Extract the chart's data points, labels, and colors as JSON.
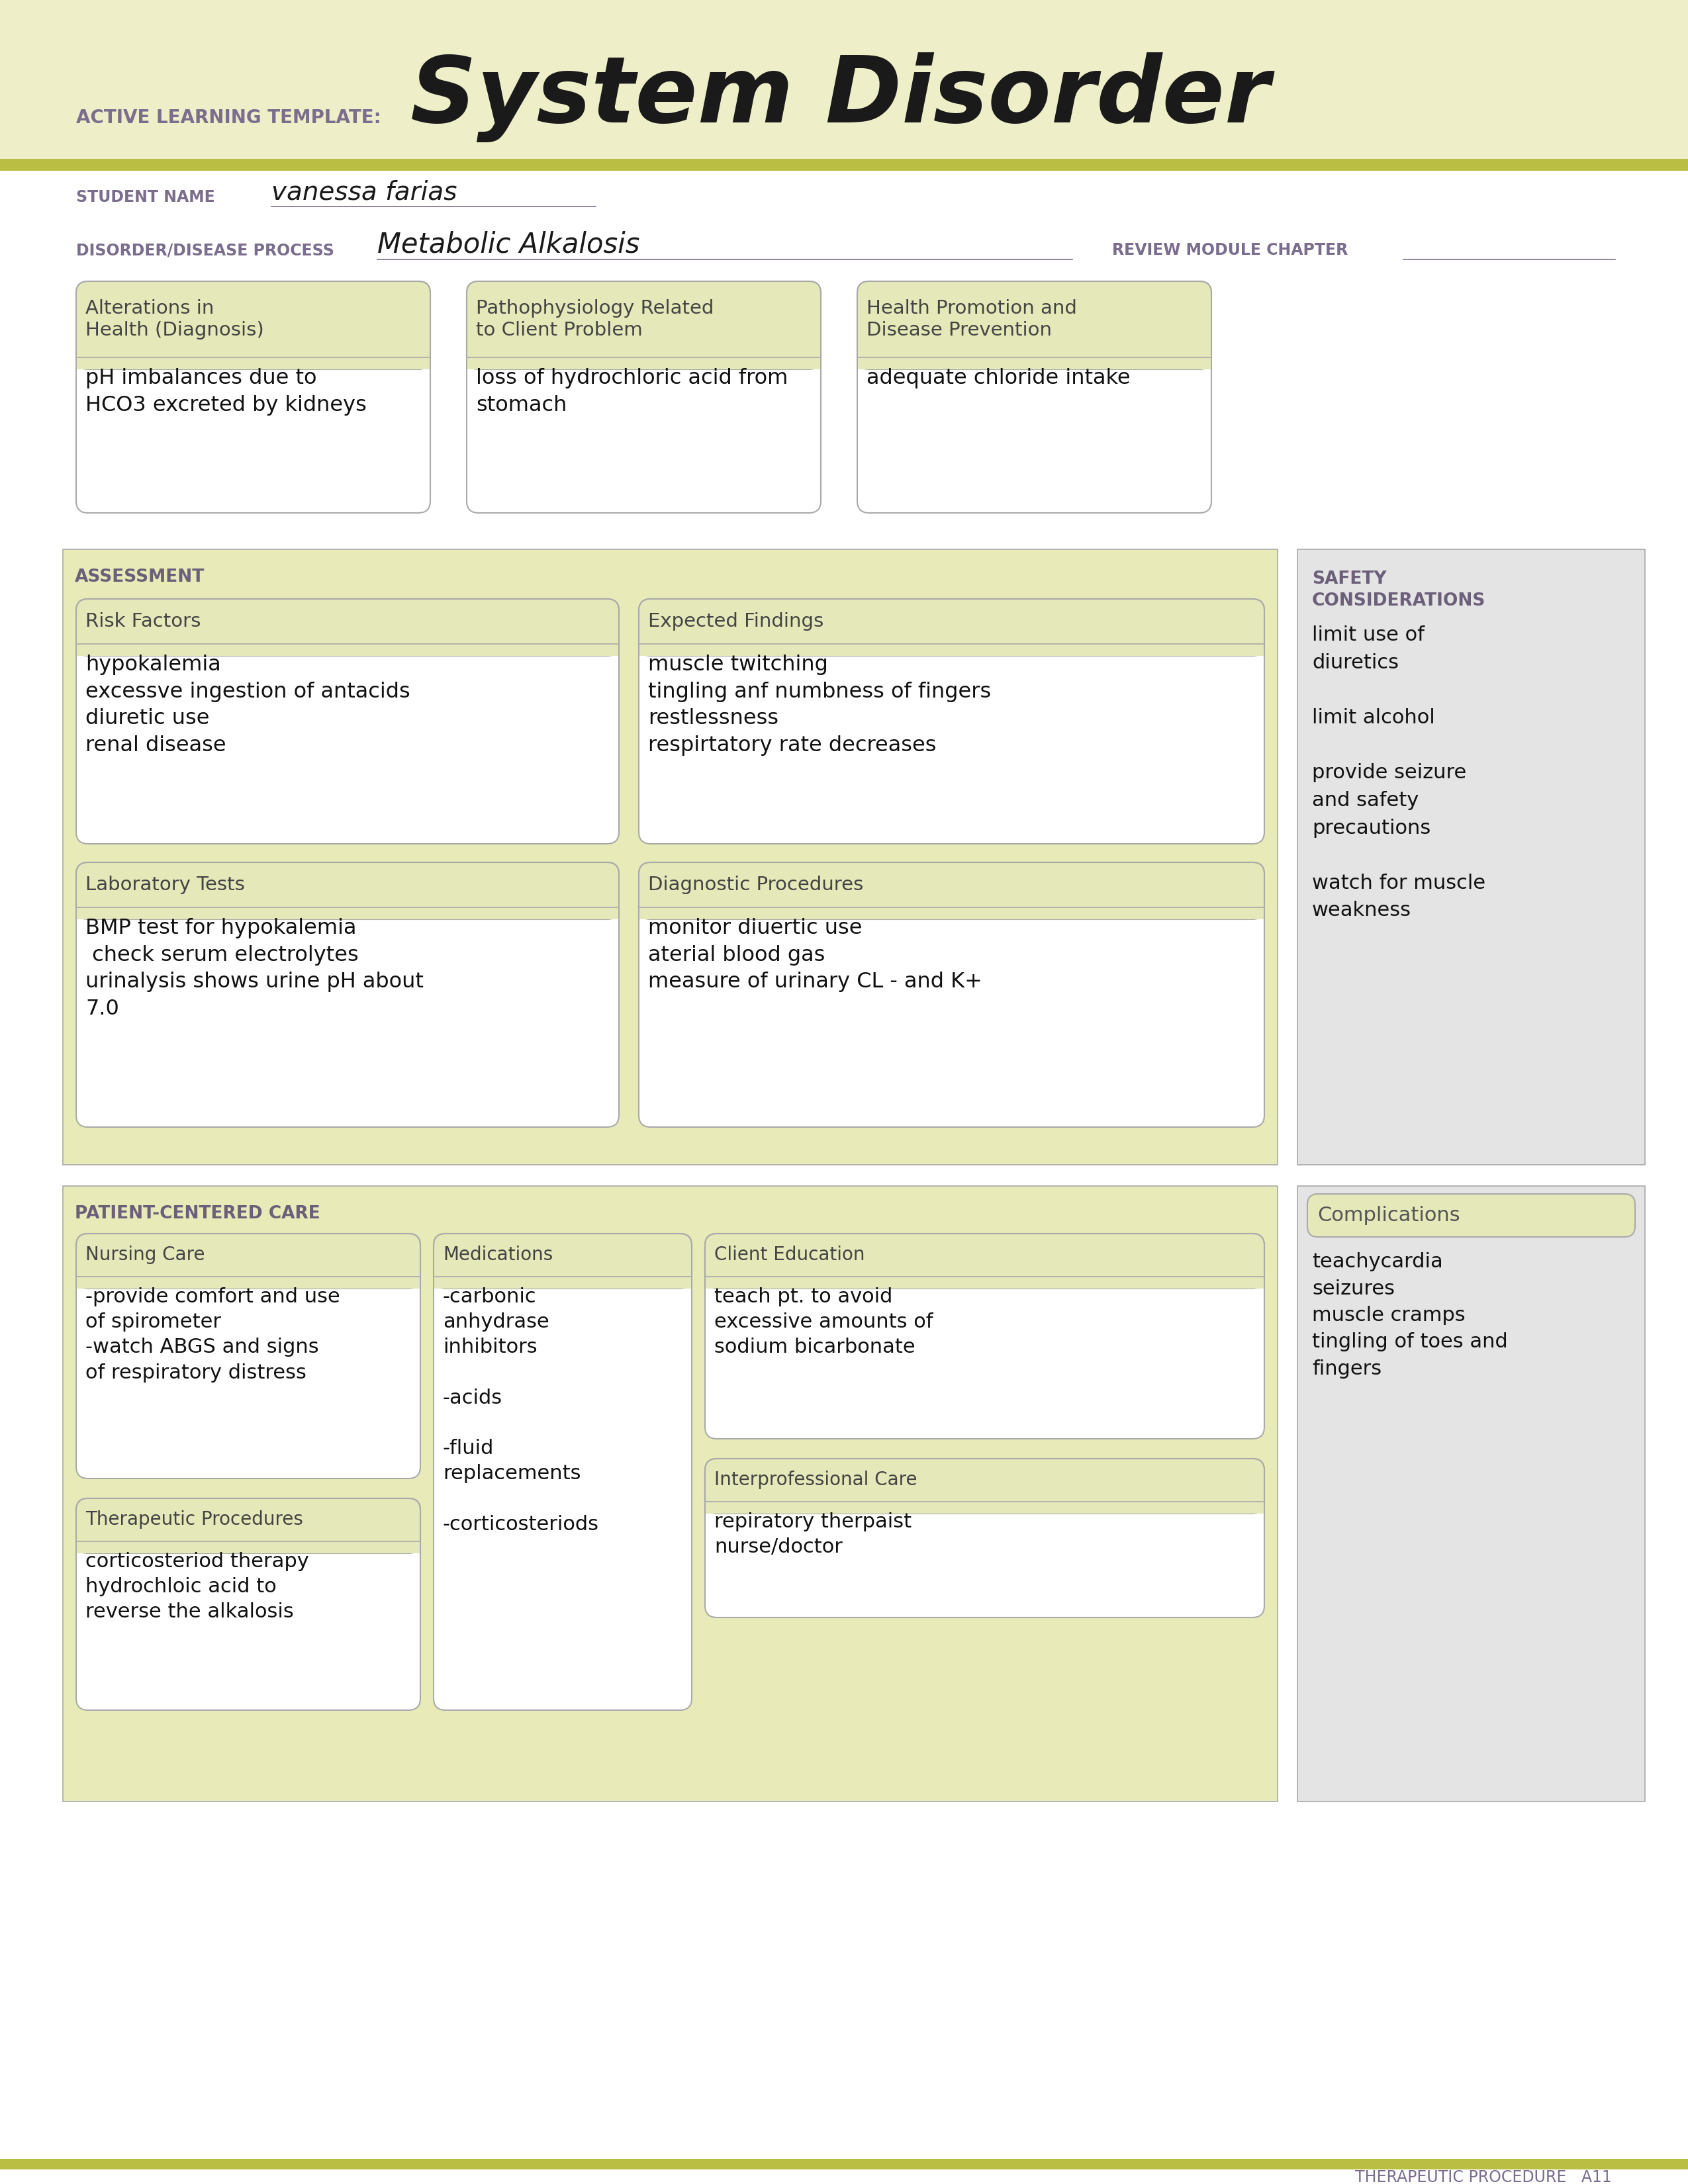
{
  "page_bg": "#FFFFFF",
  "header_bg": "#EEEFC8",
  "olive_stripe": "#BABF44",
  "box_header_bg": "#E5E8B8",
  "box_border": "#AAAAAA",
  "label_color": "#7B6D8D",
  "title_color": "#1A1A1A",
  "body_text_color": "#111111",
  "section_label_color": "#6B5F7A",
  "assess_bg": "#E8EBB8",
  "safety_bg": "#E4E4E4",
  "pcc_bg": "#E8EBB8",
  "comp_bg": "#E4E4E4",
  "active_learning_text": "ACTIVE LEARNING TEMPLATE:",
  "system_disorder_text": "System Disorder",
  "student_label": "STUDENT NAME",
  "student_name": "vanessa farias",
  "disorder_label": "DISORDER/DISEASE PROCESS",
  "disorder_name": "Metabolic Alkalosis",
  "review_label": "REVIEW MODULE CHAPTER",
  "assessment_label": "ASSESSMENT",
  "safety_label": "SAFETY\nCONSIDERATIONS",
  "patient_care_label": "PATIENT-CENTERED CARE",
  "complications_label": "Complications",
  "box1_header": "Alterations in\nHealth (Diagnosis)",
  "box1_body": "pH imbalances due to\nHCO3 excreted by kidneys",
  "box2_header": "Pathophysiology Related\nto Client Problem",
  "box2_body": "loss of hydrochloric acid from\nstomach",
  "box3_header": "Health Promotion and\nDisease Prevention",
  "box3_body": "adequate chloride intake",
  "risk_header": "Risk Factors",
  "risk_body": "hypokalemia\nexcessve ingestion of antacids\ndiuretic use\nrenal disease",
  "expected_header": "Expected Findings",
  "expected_body": "muscle twitching\ntingling anf numbness of fingers\nrestlessness\nrespirtatory rate decreases",
  "lab_header": "Laboratory Tests",
  "lab_body": "BMP test for hypokalemia\n check serum electrolytes\nurinalysis shows urine pH about\n7.0",
  "diag_header": "Diagnostic Procedures",
  "diag_body": "monitor diuertic use\naterial blood gas\nmeasure of urinary CL - and K+",
  "safety_body": "limit use of\ndiuretics\n\nlimit alcohol\n\nprovide seizure\nand safety\nprecautions\n\nwatch for muscle\nweakness",
  "nursing_header": "Nursing Care",
  "nursing_body": "-provide comfort and use\nof spirometer\n-watch ABGS and signs\nof respiratory distress",
  "meds_header": "Medications",
  "meds_body": "-carbonic\nanhydrase\ninhibitors\n\n-acids\n\n-fluid\nreplacements\n\n-corticosteriods",
  "client_header": "Client Education",
  "client_body": "teach pt. to avoid\nexcessive amounts of\nsodium bicarbonate",
  "therapeutic_header": "Therapeutic Procedures",
  "therapeutic_body": "corticosteriod therapy\nhydrochloic acid to\nreverse the alkalosis",
  "interpro_header": "Interprofessional Care",
  "interpro_body": "repiratory therpaist\nnurse/doctor",
  "complications_body": "teachycardia\nseizures\nmuscle cramps\ntingling of toes and\nfingers",
  "footer_text": "THERAPEUTIC PROCEDURE   A11"
}
